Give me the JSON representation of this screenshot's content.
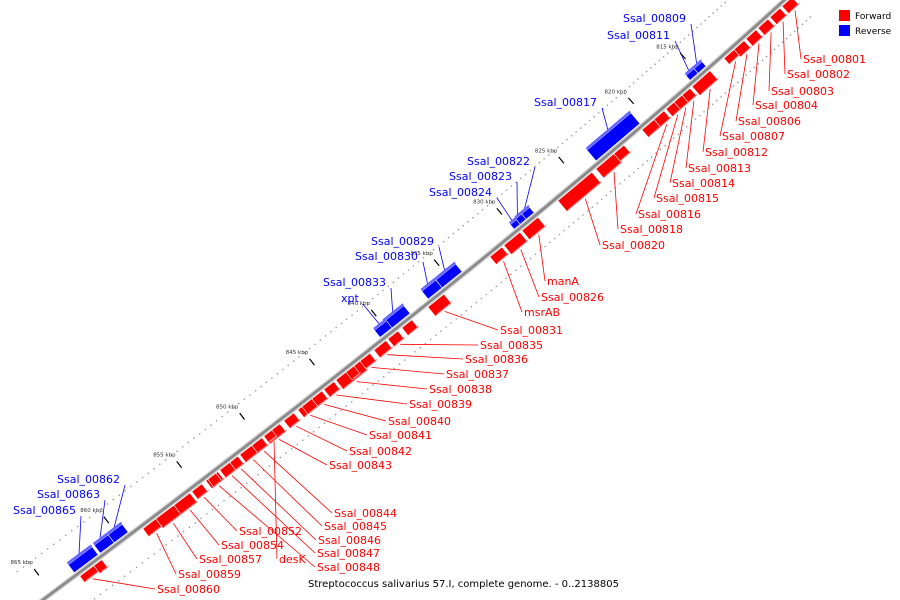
{
  "caption": "Streptococcus salivarius 57.I, complete genome. - 0..2138805",
  "legend": [
    {
      "label": "Forward",
      "color": "#ff0000"
    },
    {
      "label": "Reverse",
      "color": "#0000ff"
    }
  ],
  "colors": {
    "forward": "#ff0000",
    "reverse": "#0000ff",
    "backbone": "#888888"
  },
  "ticks": [
    {
      "kbp": 815,
      "label": "815 kbp"
    },
    {
      "kbp": 820,
      "label": "820 kbp"
    },
    {
      "kbp": 825,
      "label": "825 kbp"
    },
    {
      "kbp": 830,
      "label": "830 kbp"
    },
    {
      "kbp": 835,
      "label": "835 kbp"
    },
    {
      "kbp": 840,
      "label": "840 kbp"
    },
    {
      "kbp": 845,
      "label": "845 kbp"
    },
    {
      "kbp": 850,
      "label": "850 kbp"
    },
    {
      "kbp": 855,
      "label": "855 kbp"
    },
    {
      "kbp": 860,
      "label": "860 kbp"
    },
    {
      "kbp": 865,
      "label": "865 kbp"
    }
  ],
  "reverse_genes": [
    "Ssal_00809",
    "Ssal_00811",
    "Ssal_00817",
    "Ssal_00822",
    "Ssal_00823",
    "Ssal_00824",
    "Ssal_00829",
    "Ssal_00830",
    "Ssal_00833",
    "xpt",
    "Ssal_00862",
    "Ssal_00863",
    "Ssal_00865"
  ],
  "forward_genes": [
    "Ssal_00801",
    "Ssal_00802",
    "Ssal_00803",
    "Ssal_00804",
    "Ssal_00806",
    "Ssal_00807",
    "Ssal_00812",
    "Ssal_00813",
    "Ssal_00814",
    "Ssal_00815",
    "Ssal_00816",
    "Ssal_00818",
    "Ssal_00820",
    "manA",
    "Ssal_00826",
    "msrAB",
    "Ssal_00831",
    "Ssal_00835",
    "Ssal_00836",
    "Ssal_00837",
    "Ssal_00838",
    "Ssal_00839",
    "Ssal_00840",
    "Ssal_00841",
    "Ssal_00842",
    "Ssal_00843",
    "Ssal_00844",
    "Ssal_00845",
    "Ssal_00846",
    "Ssal_00847",
    "Ssal_00848",
    "desK",
    "Ssal_00852",
    "Ssal_00854",
    "Ssal_00857",
    "Ssal_00859",
    "Ssal_00860"
  ]
}
